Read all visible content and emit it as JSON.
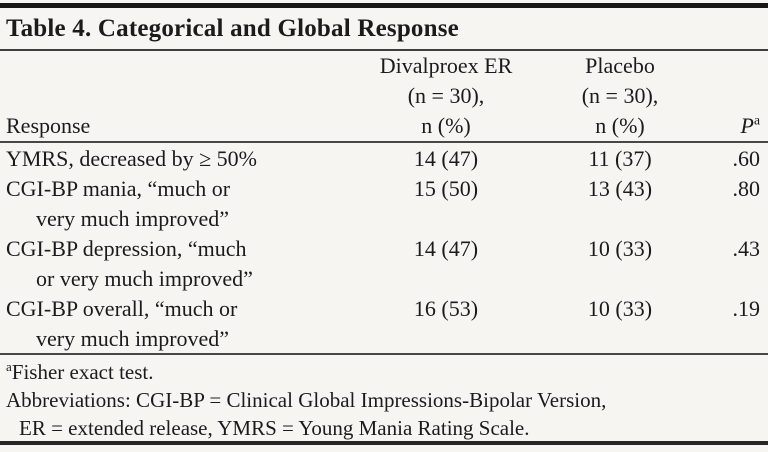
{
  "table": {
    "title": "Table 4. Categorical and Global Response",
    "header": {
      "response": "Response",
      "divalproex": {
        "line1": "Divalproex ER",
        "line2": "(n = 30),",
        "line3": "n (%)"
      },
      "placebo": {
        "line1": "Placebo",
        "line2": "(n = 30),",
        "line3": "n (%)"
      },
      "p_label": "P",
      "p_superscript": "a"
    },
    "rows": [
      {
        "response_line1": "YMRS, decreased by ≥ 50%",
        "response_line2": "",
        "divalproex": "14 (47)",
        "placebo": "11 (37)",
        "p": ".60"
      },
      {
        "response_line1": "CGI-BP mania, “much or",
        "response_line2": "very much improved”",
        "divalproex": "15 (50)",
        "placebo": "13 (43)",
        "p": ".80"
      },
      {
        "response_line1": "CGI-BP depression, “much",
        "response_line2": "or very much improved”",
        "divalproex": "14 (47)",
        "placebo": "10 (33)",
        "p": ".43"
      },
      {
        "response_line1": "CGI-BP overall, “much or",
        "response_line2": "very much improved”",
        "divalproex": "16 (53)",
        "placebo": "10 (33)",
        "p": ".19"
      }
    ],
    "footnotes": {
      "fisher_superscript": "a",
      "fisher_text": "Fisher exact test.",
      "abbrev_line1": "Abbreviations: CGI-BP = Clinical Global Impressions-Bipolar Version,",
      "abbrev_line2": "ER = extended release, YMRS = Young Mania Rating Scale."
    },
    "colors": {
      "background": "#f6f5f1",
      "text": "#1b1b1b",
      "rule_dark": "#171717",
      "rule_light": "#3d3d3d"
    }
  }
}
